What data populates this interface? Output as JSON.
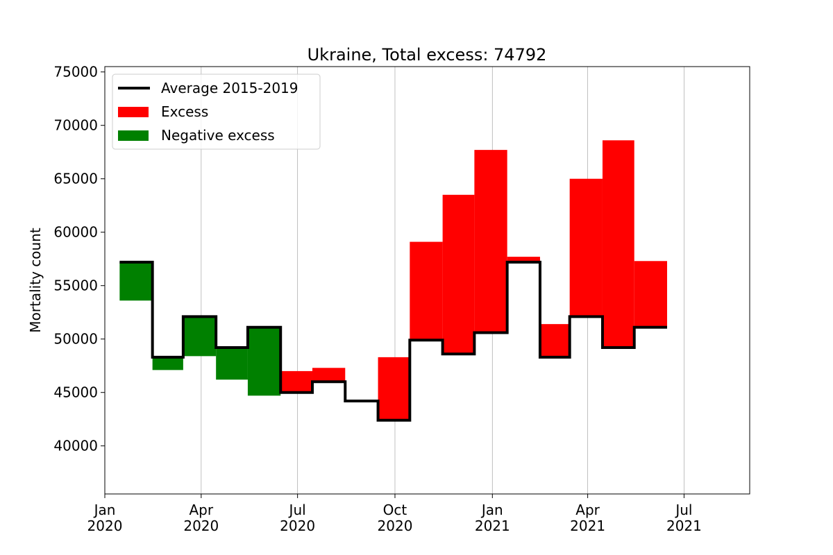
{
  "chart_data": {
    "type": "bar",
    "title": "Ukraine, Total excess: 74792",
    "xlabel": "",
    "ylabel": "Mortality count",
    "xlim": [
      "2020-01-01",
      "2021-09-01"
    ],
    "ylim": [
      35500,
      75500
    ],
    "yticks": [
      40000,
      45000,
      50000,
      55000,
      60000,
      65000,
      70000,
      75000
    ],
    "xticks": [
      {
        "date": "2020-01-01",
        "label": [
          "Jan",
          "2020"
        ]
      },
      {
        "date": "2020-04-01",
        "label": [
          "Apr",
          "2020"
        ]
      },
      {
        "date": "2020-07-01",
        "label": [
          "Jul",
          "2020"
        ]
      },
      {
        "date": "2020-10-01",
        "label": [
          "Oct",
          "2020"
        ]
      },
      {
        "date": "2021-01-01",
        "label": [
          "Jan",
          "2021"
        ]
      },
      {
        "date": "2021-04-01",
        "label": [
          "Apr",
          "2021"
        ]
      },
      {
        "date": "2021-07-01",
        "label": [
          "Jul",
          "2021"
        ]
      }
    ],
    "grid": "x",
    "legend": {
      "placement": "top-left",
      "entries": [
        {
          "name": "Average 2015-2019",
          "kind": "line",
          "color": "#000000"
        },
        {
          "name": "Excess",
          "kind": "patch",
          "color": "#ff0000"
        },
        {
          "name": "Negative excess",
          "kind": "patch",
          "color": "#008000"
        }
      ]
    },
    "colors": {
      "excess": "#ff0000",
      "negative": "#008000",
      "baseline": "#000000"
    },
    "months": [
      {
        "start": "2020-01-15",
        "end": "2020-02-15",
        "baseline": 57200,
        "actual": 53600
      },
      {
        "start": "2020-02-15",
        "end": "2020-03-15",
        "baseline": 48300,
        "actual": 47100
      },
      {
        "start": "2020-03-15",
        "end": "2020-04-15",
        "baseline": 52100,
        "actual": 48400
      },
      {
        "start": "2020-04-15",
        "end": "2020-05-15",
        "baseline": 49200,
        "actual": 46200
      },
      {
        "start": "2020-05-15",
        "end": "2020-06-15",
        "baseline": 51100,
        "actual": 44700
      },
      {
        "start": "2020-06-15",
        "end": "2020-07-15",
        "baseline": 45000,
        "actual": 47000
      },
      {
        "start": "2020-07-15",
        "end": "2020-08-15",
        "baseline": 46000,
        "actual": 47300
      },
      {
        "start": "2020-08-15",
        "end": "2020-09-15",
        "baseline": 44200,
        "actual": 44100
      },
      {
        "start": "2020-09-15",
        "end": "2020-10-15",
        "baseline": 42400,
        "actual": 48300
      },
      {
        "start": "2020-10-15",
        "end": "2020-11-15",
        "baseline": 49900,
        "actual": 59100
      },
      {
        "start": "2020-11-15",
        "end": "2020-12-15",
        "baseline": 48600,
        "actual": 63500
      },
      {
        "start": "2020-12-15",
        "end": "2021-01-15",
        "baseline": 50600,
        "actual": 67700
      },
      {
        "start": "2021-01-15",
        "end": "2021-02-15",
        "baseline": 57200,
        "actual": 57700
      },
      {
        "start": "2021-02-15",
        "end": "2021-03-15",
        "baseline": 48300,
        "actual": 51400
      },
      {
        "start": "2021-03-15",
        "end": "2021-04-15",
        "baseline": 52100,
        "actual": 65000
      },
      {
        "start": "2021-04-15",
        "end": "2021-05-15",
        "baseline": 49200,
        "actual": 68600
      },
      {
        "start": "2021-05-15",
        "end": "2021-06-15",
        "baseline": 51100,
        "actual": 57300
      }
    ]
  }
}
